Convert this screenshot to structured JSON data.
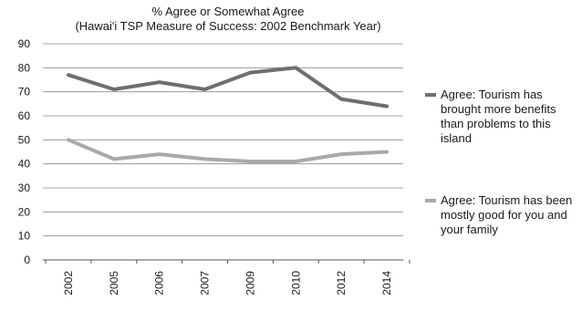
{
  "chart_data": {
    "type": "line",
    "title": "% Agree or Somewhat Agree",
    "subtitle": "(Hawai'i TSP Measure of Success: 2002 Benchmark Year)",
    "xlabel": "",
    "ylabel": "",
    "categories": [
      "2002",
      "2005",
      "2006",
      "2007",
      "2009",
      "2010",
      "2012",
      "2014"
    ],
    "ylim": [
      0,
      90
    ],
    "yticks": [
      0,
      10,
      20,
      30,
      40,
      50,
      60,
      70,
      80,
      90
    ],
    "grid": true,
    "legend_position": "right",
    "series": [
      {
        "name": "Agree: Tourism has brought more benefits than problems to this island",
        "values": [
          77,
          71,
          74,
          71,
          78,
          80,
          67,
          64
        ],
        "color": "#6e6e6e"
      },
      {
        "name": "Agree: Tourism has been mostly good for you and your family",
        "values": [
          50,
          42,
          44,
          42,
          41,
          41,
          44,
          45
        ],
        "color": "#a9a9a9"
      }
    ]
  }
}
